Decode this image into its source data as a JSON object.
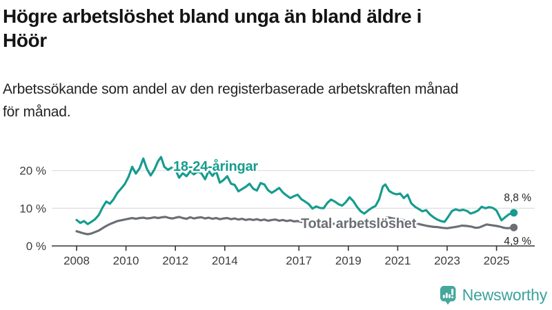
{
  "title": {
    "line1": "Högre arbetslöshet bland unga än bland äldre i",
    "line2": "Höör"
  },
  "subtitle": {
    "line1": "Arbetssökande som andel av den registerbaserade arbetskraften månad",
    "line2": "för månad."
  },
  "colors": {
    "young_line": "#159c8e",
    "total_line": "#6b6f74",
    "grid": "#e0e0e0",
    "axis": "#333333",
    "tick_text": "#3d3d3d",
    "end_label_text": "#222222",
    "brand_teal": "#46a79d",
    "halo": "#ffffff"
  },
  "chart_data": {
    "type": "line",
    "title": "Högre arbetslöshet bland unga än bland äldre i Höör",
    "subtitle": "Arbetssökande som andel av den registerbaserade arbetskraften månad för månad.",
    "xlabel": "",
    "ylabel": "",
    "grid": "horizontal",
    "legend_position": "inline-labels",
    "x_axis": {
      "range": [
        2007.0,
        2026.5
      ],
      "ticks": [
        2008,
        2010,
        2012,
        2014,
        2017,
        2019,
        2021,
        2023,
        2025
      ],
      "tick_labels": [
        "2008",
        "2010",
        "2012",
        "2014",
        "2017",
        "2019",
        "2021",
        "2023",
        "2025"
      ]
    },
    "y_axis": {
      "range": [
        0,
        26
      ],
      "ticks": [
        0,
        10,
        20
      ],
      "tick_labels": [
        "0 %",
        "10 %",
        "20 %"
      ]
    },
    "series": [
      {
        "name": "Total arbetslöshet",
        "color": "#6b6f74",
        "end_value": 4.9,
        "end_label": "4,9 %",
        "points": [
          [
            2008.0,
            3.9
          ],
          [
            2008.15,
            3.6
          ],
          [
            2008.3,
            3.3
          ],
          [
            2008.45,
            3.1
          ],
          [
            2008.6,
            3.3
          ],
          [
            2008.75,
            3.7
          ],
          [
            2008.9,
            4.1
          ],
          [
            2009.05,
            4.7
          ],
          [
            2009.2,
            5.3
          ],
          [
            2009.35,
            5.8
          ],
          [
            2009.5,
            6.2
          ],
          [
            2009.65,
            6.6
          ],
          [
            2009.8,
            6.8
          ],
          [
            2009.95,
            7.0
          ],
          [
            2010.1,
            7.2
          ],
          [
            2010.25,
            7.4
          ],
          [
            2010.4,
            7.2
          ],
          [
            2010.55,
            7.4
          ],
          [
            2010.7,
            7.5
          ],
          [
            2010.85,
            7.3
          ],
          [
            2011.0,
            7.4
          ],
          [
            2011.15,
            7.6
          ],
          [
            2011.3,
            7.4
          ],
          [
            2011.45,
            7.6
          ],
          [
            2011.6,
            7.7
          ],
          [
            2011.75,
            7.4
          ],
          [
            2011.9,
            7.3
          ],
          [
            2012.0,
            7.5
          ],
          [
            2012.15,
            7.7
          ],
          [
            2012.3,
            7.4
          ],
          [
            2012.45,
            7.2
          ],
          [
            2012.6,
            7.6
          ],
          [
            2012.75,
            7.3
          ],
          [
            2012.9,
            7.5
          ],
          [
            2013.05,
            7.6
          ],
          [
            2013.2,
            7.3
          ],
          [
            2013.35,
            7.5
          ],
          [
            2013.5,
            7.2
          ],
          [
            2013.65,
            7.4
          ],
          [
            2013.8,
            7.1
          ],
          [
            2013.95,
            7.3
          ],
          [
            2014.1,
            7.4
          ],
          [
            2014.25,
            7.1
          ],
          [
            2014.4,
            7.3
          ],
          [
            2014.55,
            7.0
          ],
          [
            2014.7,
            7.2
          ],
          [
            2014.85,
            6.9
          ],
          [
            2015.0,
            7.1
          ],
          [
            2015.15,
            6.9
          ],
          [
            2015.3,
            7.1
          ],
          [
            2015.45,
            6.8
          ],
          [
            2015.6,
            7.0
          ],
          [
            2015.75,
            6.7
          ],
          [
            2015.9,
            6.9
          ],
          [
            2016.05,
            7.0
          ],
          [
            2016.2,
            6.7
          ],
          [
            2016.35,
            6.9
          ],
          [
            2016.5,
            6.6
          ],
          [
            2016.65,
            6.8
          ],
          [
            2016.8,
            6.5
          ],
          [
            2016.95,
            6.6
          ],
          [
            2017.1,
            6.4
          ],
          [
            2017.25,
            6.2
          ],
          [
            2017.4,
            6.3
          ],
          [
            2017.55,
            6.0
          ],
          [
            2017.7,
            6.1
          ],
          [
            2017.85,
            5.9
          ],
          [
            2018.0,
            6.0
          ],
          [
            2018.2,
            5.8
          ],
          [
            2018.4,
            5.9
          ],
          [
            2018.6,
            5.6
          ],
          [
            2018.8,
            5.7
          ],
          [
            2019.0,
            5.6
          ],
          [
            2019.2,
            5.4
          ],
          [
            2019.4,
            5.5
          ],
          [
            2019.6,
            5.3
          ],
          [
            2019.8,
            5.5
          ],
          [
            2020.0,
            5.6
          ],
          [
            2020.2,
            6.3
          ],
          [
            2020.4,
            7.4
          ],
          [
            2020.6,
            7.6
          ],
          [
            2020.8,
            7.3
          ],
          [
            2021.0,
            7.2
          ],
          [
            2021.2,
            6.9
          ],
          [
            2021.4,
            6.6
          ],
          [
            2021.6,
            6.3
          ],
          [
            2021.8,
            5.9
          ],
          [
            2022.0,
            5.6
          ],
          [
            2022.2,
            5.3
          ],
          [
            2022.4,
            5.1
          ],
          [
            2022.6,
            5.0
          ],
          [
            2022.8,
            4.8
          ],
          [
            2023.0,
            4.7
          ],
          [
            2023.2,
            4.9
          ],
          [
            2023.4,
            5.1
          ],
          [
            2023.6,
            5.4
          ],
          [
            2023.8,
            5.3
          ],
          [
            2024.0,
            5.1
          ],
          [
            2024.15,
            4.8
          ],
          [
            2024.3,
            4.9
          ],
          [
            2024.45,
            5.3
          ],
          [
            2024.6,
            5.7
          ],
          [
            2024.8,
            5.5
          ],
          [
            2025.0,
            5.3
          ],
          [
            2025.15,
            5.1
          ],
          [
            2025.3,
            4.8
          ],
          [
            2025.45,
            4.7
          ],
          [
            2025.6,
            4.8
          ],
          [
            2025.7,
            4.9
          ]
        ]
      },
      {
        "name": "18-24-åringar",
        "color": "#159c8e",
        "end_value": 8.8,
        "end_label": "8,8 %",
        "points": [
          [
            2008.0,
            6.9
          ],
          [
            2008.15,
            6.1
          ],
          [
            2008.3,
            6.6
          ],
          [
            2008.45,
            5.8
          ],
          [
            2008.6,
            6.4
          ],
          [
            2008.75,
            7.1
          ],
          [
            2008.9,
            8.2
          ],
          [
            2009.05,
            10.2
          ],
          [
            2009.2,
            11.8
          ],
          [
            2009.35,
            11.2
          ],
          [
            2009.5,
            12.4
          ],
          [
            2009.65,
            14.1
          ],
          [
            2009.8,
            15.2
          ],
          [
            2009.95,
            16.4
          ],
          [
            2010.1,
            18.3
          ],
          [
            2010.25,
            21.0
          ],
          [
            2010.4,
            19.2
          ],
          [
            2010.55,
            20.6
          ],
          [
            2010.7,
            23.2
          ],
          [
            2010.85,
            20.4
          ],
          [
            2011.0,
            18.7
          ],
          [
            2011.15,
            20.3
          ],
          [
            2011.3,
            22.5
          ],
          [
            2011.42,
            23.6
          ],
          [
            2011.55,
            21.0
          ],
          [
            2011.7,
            20.2
          ],
          [
            2011.85,
            20.8
          ],
          [
            2012.0,
            20.3
          ],
          [
            2012.15,
            18.1
          ],
          [
            2012.3,
            19.3
          ],
          [
            2012.45,
            18.5
          ],
          [
            2012.6,
            19.8
          ],
          [
            2012.75,
            19.0
          ],
          [
            2012.9,
            19.7
          ],
          [
            2013.05,
            19.3
          ],
          [
            2013.2,
            17.7
          ],
          [
            2013.35,
            19.9
          ],
          [
            2013.5,
            18.6
          ],
          [
            2013.65,
            19.8
          ],
          [
            2013.8,
            16.8
          ],
          [
            2013.95,
            17.5
          ],
          [
            2014.1,
            18.5
          ],
          [
            2014.25,
            16.5
          ],
          [
            2014.4,
            16.2
          ],
          [
            2014.55,
            14.5
          ],
          [
            2014.7,
            15.1
          ],
          [
            2014.85,
            15.7
          ],
          [
            2015.0,
            16.5
          ],
          [
            2015.15,
            15.2
          ],
          [
            2015.3,
            14.7
          ],
          [
            2015.45,
            16.7
          ],
          [
            2015.6,
            16.3
          ],
          [
            2015.75,
            14.8
          ],
          [
            2015.9,
            14.1
          ],
          [
            2016.05,
            14.7
          ],
          [
            2016.2,
            15.4
          ],
          [
            2016.35,
            14.2
          ],
          [
            2016.5,
            13.4
          ],
          [
            2016.65,
            12.7
          ],
          [
            2016.8,
            13.2
          ],
          [
            2016.95,
            13.6
          ],
          [
            2017.1,
            12.4
          ],
          [
            2017.25,
            11.8
          ],
          [
            2017.4,
            11.1
          ],
          [
            2017.55,
            9.9
          ],
          [
            2017.7,
            10.5
          ],
          [
            2017.85,
            10.1
          ],
          [
            2018.0,
            10.0
          ],
          [
            2018.15,
            11.4
          ],
          [
            2018.3,
            12.3
          ],
          [
            2018.45,
            11.8
          ],
          [
            2018.6,
            11.1
          ],
          [
            2018.75,
            10.7
          ],
          [
            2018.9,
            11.6
          ],
          [
            2019.05,
            12.9
          ],
          [
            2019.2,
            11.9
          ],
          [
            2019.35,
            10.4
          ],
          [
            2019.5,
            9.2
          ],
          [
            2019.65,
            8.6
          ],
          [
            2019.8,
            9.4
          ],
          [
            2019.95,
            10.1
          ],
          [
            2020.1,
            10.6
          ],
          [
            2020.25,
            12.4
          ],
          [
            2020.4,
            15.8
          ],
          [
            2020.5,
            16.3
          ],
          [
            2020.65,
            14.6
          ],
          [
            2020.8,
            14.0
          ],
          [
            2020.95,
            13.7
          ],
          [
            2021.1,
            13.9
          ],
          [
            2021.25,
            12.7
          ],
          [
            2021.4,
            13.6
          ],
          [
            2021.55,
            11.3
          ],
          [
            2021.7,
            10.4
          ],
          [
            2021.85,
            9.8
          ],
          [
            2022.0,
            9.2
          ],
          [
            2022.15,
            9.5
          ],
          [
            2022.3,
            8.4
          ],
          [
            2022.45,
            7.6
          ],
          [
            2022.6,
            7.0
          ],
          [
            2022.75,
            6.6
          ],
          [
            2022.9,
            6.4
          ],
          [
            2023.05,
            7.8
          ],
          [
            2023.2,
            9.3
          ],
          [
            2023.35,
            9.7
          ],
          [
            2023.5,
            9.4
          ],
          [
            2023.65,
            9.6
          ],
          [
            2023.8,
            9.3
          ],
          [
            2023.95,
            8.6
          ],
          [
            2024.1,
            8.9
          ],
          [
            2024.25,
            9.4
          ],
          [
            2024.4,
            10.4
          ],
          [
            2024.55,
            10.0
          ],
          [
            2024.7,
            10.3
          ],
          [
            2024.85,
            10.1
          ],
          [
            2025.0,
            9.4
          ],
          [
            2025.2,
            6.8
          ],
          [
            2025.35,
            7.6
          ],
          [
            2025.5,
            8.4
          ],
          [
            2025.7,
            8.8
          ]
        ]
      }
    ]
  },
  "footer": {
    "brand": "Newsworthy",
    "logo_icon": "bar-chart-speech-bubble-icon"
  }
}
